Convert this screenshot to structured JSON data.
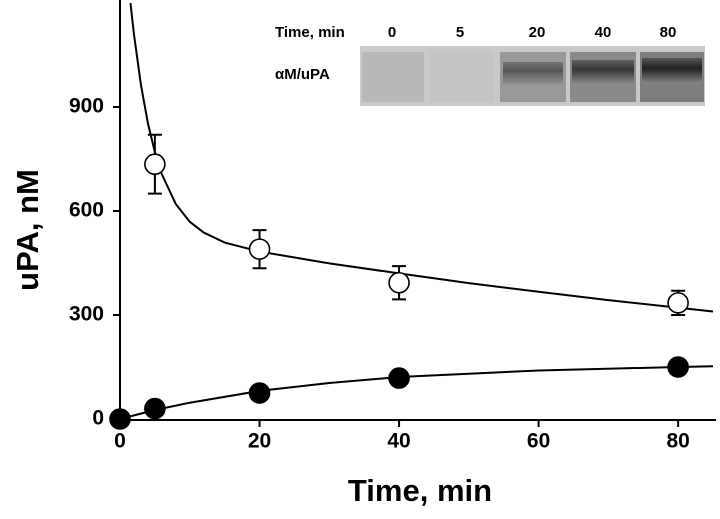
{
  "chart_data": {
    "type": "scatter",
    "xlabel": "Time, min",
    "ylabel": "uPA, nM",
    "xlim": [
      0,
      85
    ],
    "ylim": [
      0,
      1200
    ],
    "xticks": [
      0,
      20,
      40,
      60,
      80
    ],
    "yticks": [
      0,
      300,
      600,
      900
    ],
    "series": [
      {
        "marker": "open",
        "color": "#000000",
        "x": [
          5,
          20,
          40,
          80
        ],
        "values": [
          735,
          490,
          393,
          335
        ],
        "errors": [
          85,
          55,
          48,
          35
        ]
      },
      {
        "marker": "filled",
        "color": "#000000",
        "x": [
          0,
          5,
          20,
          40,
          80
        ],
        "values": [
          0,
          30,
          75,
          118,
          150
        ]
      }
    ],
    "fits": [
      {
        "color": "#000000",
        "x": [
          1.5,
          2,
          3,
          4,
          5,
          6,
          8,
          10,
          12,
          15,
          20,
          30,
          40,
          50,
          60,
          70,
          85
        ],
        "values": [
          1200,
          1110,
          964,
          853,
          770,
          706,
          620,
          569,
          538,
          509,
          483,
          449,
          420,
          392,
          367,
          343,
          310
        ]
      },
      {
        "color": "#000000",
        "x": [
          0,
          5,
          10,
          20,
          30,
          40,
          60,
          80,
          85
        ],
        "values": [
          0,
          26,
          47,
          81,
          104,
          121,
          140,
          150,
          152
        ]
      }
    ],
    "inset": {
      "header": "Time, min",
      "lanes": [
        "0",
        "5",
        "20",
        "40",
        "80"
      ],
      "band_label": "αM/uPA"
    }
  }
}
